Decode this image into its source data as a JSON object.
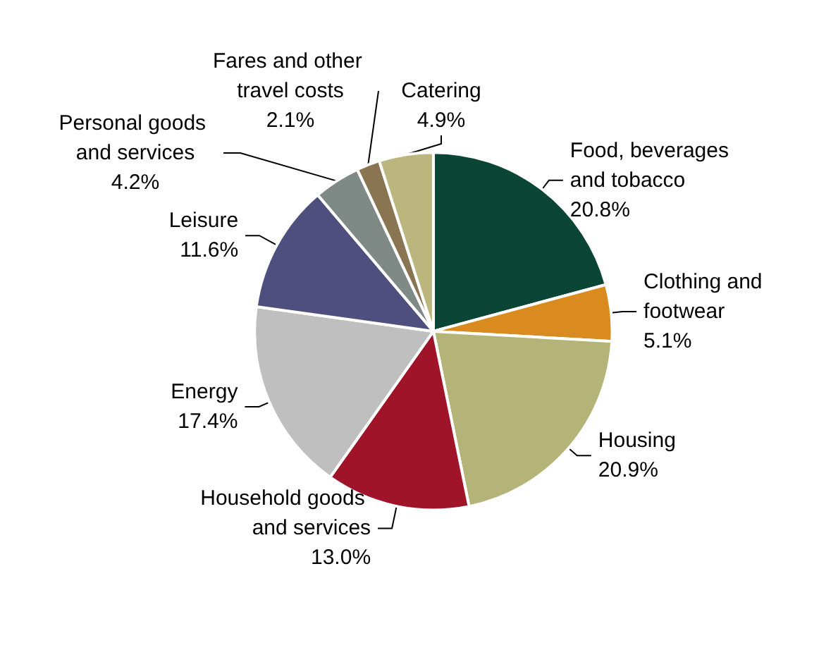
{
  "chart_data": {
    "type": "pie",
    "categories": [
      "Food, beverages and tobacco",
      "Clothing and footwear",
      "Housing",
      "Household goods and services",
      "Energy",
      "Leisure",
      "Personal goods and services",
      "Fares and other travel costs",
      "Catering"
    ],
    "values": [
      20.8,
      5.1,
      20.9,
      13.0,
      17.4,
      11.6,
      4.2,
      2.1,
      4.9
    ],
    "value_labels": [
      "20.8%",
      "5.1%",
      "20.9%",
      "13.0%",
      "17.4%",
      "11.6%",
      "4.2%",
      "2.1%",
      "4.9%"
    ],
    "colors": [
      "#0b4535",
      "#d98b1f",
      "#b5b478",
      "#a0142a",
      "#bfbfbf",
      "#4f4f7f",
      "#7f8a87",
      "#8a7553",
      "#bab67e"
    ],
    "legend": false
  }
}
